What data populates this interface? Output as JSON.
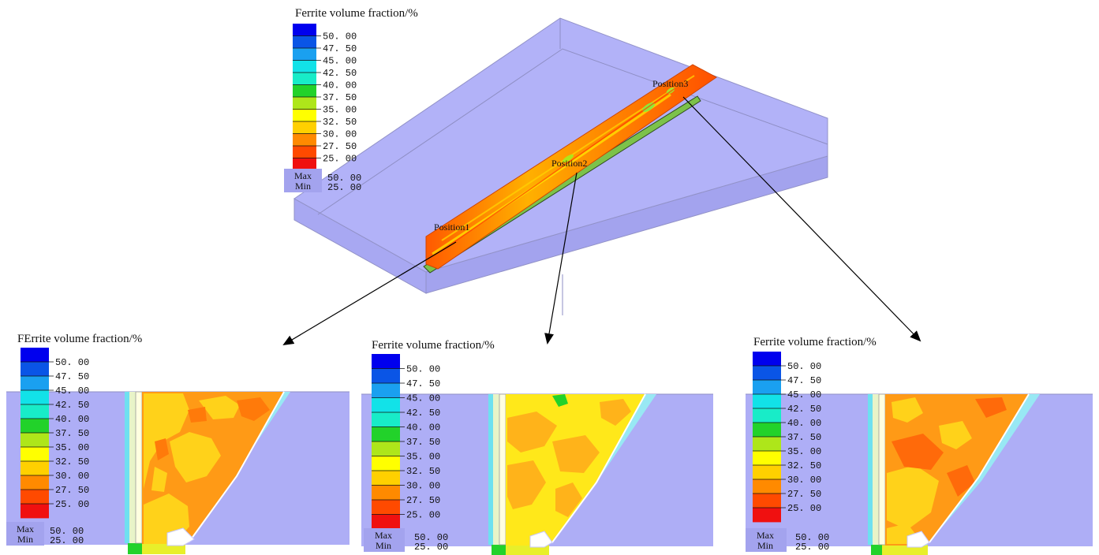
{
  "legend_top": {
    "title": "Ferrite volume fraction/%",
    "ticks": [
      "50. 00",
      "47. 50",
      "45. 00",
      "42. 50",
      "40. 00",
      "37. 50",
      "35. 00",
      "32. 50",
      "30. 00",
      "27. 50",
      "25. 00"
    ],
    "max_label": "Max",
    "min_label": "Min",
    "max_value": "50. 00",
    "min_value": "25. 00"
  },
  "legend_pos1": {
    "title": "FErrite volume fraction/%",
    "ticks": [
      "50. 00",
      "47. 50",
      "45. 00",
      "42. 50",
      "40. 00",
      "37. 50",
      "35. 00",
      "32. 50",
      "30. 00",
      "27. 50",
      "25. 00"
    ],
    "max_label": "Max",
    "min_label": "Min",
    "max_value": "50. 00",
    "min_value": "25. 00"
  },
  "legend_pos2": {
    "title": "Ferrite volume fraction/%",
    "ticks": [
      "50. 00",
      "47. 50",
      "45. 00",
      "42. 50",
      "40. 00",
      "37. 50",
      "35. 00",
      "32. 50",
      "30. 00",
      "27. 50",
      "25. 00"
    ],
    "max_label": "Max",
    "min_label": "Min",
    "max_value": "50. 00",
    "min_value": "25. 00"
  },
  "legend_pos3": {
    "title": "Ferrite volume fraction/%",
    "ticks": [
      "50. 00",
      "47. 50",
      "45. 00",
      "42. 50",
      "40. 00",
      "37. 50",
      "35. 00",
      "32. 50",
      "30. 00",
      "27. 50",
      "25. 00"
    ],
    "max_label": "Max",
    "min_label": "Min",
    "max_value": "50. 00",
    "min_value": "25. 00"
  },
  "positions": {
    "p1": "Position1",
    "p2": "Position2",
    "p3": "Position3"
  },
  "colors": {
    "plate": "#aeaef6",
    "bands": [
      "#0000ee",
      "#0a55e6",
      "#1aa0f0",
      "#12e2e8",
      "#18ecc8",
      "#22d22a",
      "#aee61a",
      "#ffff00",
      "#ffd000",
      "#ff8a00",
      "#ff4a00",
      "#f01010"
    ]
  }
}
